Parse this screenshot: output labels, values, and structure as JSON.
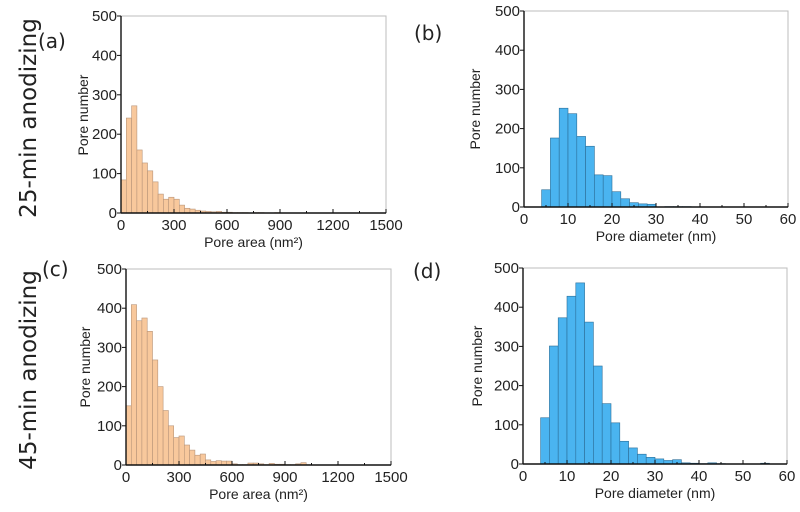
{
  "row_labels": [
    "25-min anodizing",
    "45-min anodizing"
  ],
  "colors": {
    "area_fill": "#F8C89C",
    "area_stroke": "#B8957A",
    "diam_fill": "#4AB4F0",
    "diam_stroke": "#2C6E98"
  },
  "chart_data": [
    {
      "type": "bar",
      "panel": "(a)",
      "title": "",
      "xlabel": "Pore area (nm²)",
      "ylabel": "Pore number",
      "xlim": [
        0,
        1500
      ],
      "ylim": [
        0,
        500
      ],
      "xticks": [
        0,
        300,
        600,
        900,
        1200,
        1500
      ],
      "xtick_labels": [
        "0",
        "300",
        "600",
        "900",
        "1200",
        "1500"
      ],
      "yticks": [
        0,
        100,
        200,
        300,
        400,
        500
      ],
      "ytick_labels": [
        "0",
        "100",
        "200",
        "300",
        "400",
        "500"
      ],
      "bin_width": 30,
      "bin_start": 0,
      "values": [
        84,
        241,
        272,
        160,
        127,
        107,
        79,
        48,
        35,
        40,
        35,
        20,
        12,
        10,
        7,
        5,
        4,
        3,
        4,
        2,
        2,
        1,
        1,
        1,
        0,
        1,
        1,
        0,
        0,
        1
      ],
      "color_key": "area"
    },
    {
      "type": "bar",
      "panel": "(b)",
      "title": "",
      "xlabel": "Pore diameter (nm)",
      "ylabel": "Pore number",
      "xlim": [
        0,
        60
      ],
      "ylim": [
        0,
        500
      ],
      "xticks": [
        0,
        10,
        20,
        30,
        40,
        50,
        60
      ],
      "xtick_labels": [
        "0",
        "10",
        "20",
        "30",
        "40",
        "50",
        "60"
      ],
      "yticks": [
        0,
        100,
        200,
        300,
        400,
        500
      ],
      "ytick_labels": [
        "0",
        "100",
        "200",
        "300",
        "400",
        "500"
      ],
      "bin_width": 2,
      "bin_start": 4,
      "values": [
        44,
        176,
        252,
        238,
        180,
        155,
        82,
        80,
        39,
        21,
        11,
        8,
        7,
        0,
        1,
        1,
        1
      ],
      "color_key": "diam"
    },
    {
      "type": "bar",
      "panel": "(c)",
      "title": "",
      "xlabel": "Pore area (nm²)",
      "ylabel": "Pore number",
      "xlim": [
        0,
        1500
      ],
      "ylim": [
        0,
        500
      ],
      "xticks": [
        0,
        300,
        600,
        900,
        1200,
        1500
      ],
      "xtick_labels": [
        "0",
        "300",
        "600",
        "900",
        "1200",
        "1500"
      ],
      "yticks": [
        0,
        100,
        200,
        300,
        400,
        500
      ],
      "ytick_labels": [
        "0",
        "100",
        "200",
        "300",
        "400",
        "500"
      ],
      "bin_width": 30,
      "bin_start": 0,
      "values": [
        151,
        409,
        368,
        375,
        341,
        268,
        200,
        139,
        100,
        70,
        74,
        51,
        38,
        25,
        28,
        13,
        9,
        11,
        10,
        10,
        3,
        1,
        1,
        5,
        5,
        3,
        1,
        4,
        2,
        2,
        1,
        1,
        3,
        6,
        1
      ],
      "color_key": "area"
    },
    {
      "type": "bar",
      "panel": "(d)",
      "title": "",
      "xlabel": "Pore diameter (nm)",
      "ylabel": "Pore number",
      "xlim": [
        0,
        60
      ],
      "ylim": [
        0,
        500
      ],
      "xticks": [
        0,
        10,
        20,
        30,
        40,
        50,
        60
      ],
      "xtick_labels": [
        "0",
        "10",
        "20",
        "30",
        "40",
        "50",
        "60"
      ],
      "yticks": [
        0,
        100,
        200,
        300,
        400,
        500
      ],
      "ytick_labels": [
        "0",
        "100",
        "200",
        "300",
        "400",
        "500"
      ],
      "bin_width": 2,
      "bin_start": 4,
      "values": [
        118,
        301,
        373,
        428,
        462,
        362,
        250,
        154,
        105,
        58,
        41,
        25,
        17,
        13,
        9,
        11,
        3,
        2,
        1,
        3,
        1,
        0,
        0,
        0,
        0,
        2
      ],
      "color_key": "diam"
    }
  ]
}
